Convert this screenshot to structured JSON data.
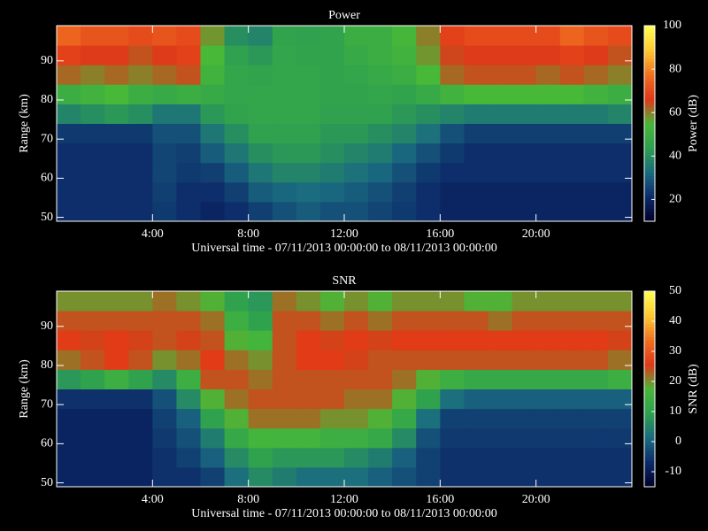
{
  "chart_data": [
    {
      "type": "heatmap",
      "title": "Power",
      "xlabel": "Universal time - 07/11/2013 00:00:00 to 08/11/2013 00:00:00",
      "ylabel": "Range (km)",
      "colorbar_label": "Power (dB)",
      "x": [
        0.5,
        1.5,
        2.5,
        3.5,
        4.5,
        5.5,
        6.5,
        7.5,
        8.5,
        9.5,
        10.5,
        11.5,
        12.5,
        13.5,
        14.5,
        15.5,
        16.5,
        17.5,
        18.5,
        19.5,
        20.5,
        21.5,
        22.5,
        23.5
      ],
      "y": [
        51.5,
        56.5,
        61.5,
        66.5,
        71.5,
        76.5,
        81.5,
        86.5,
        91.5,
        96.5
      ],
      "z": [
        [
          22,
          22,
          22,
          22,
          24,
          22,
          20,
          22,
          25,
          28,
          30,
          28,
          28,
          26,
          24,
          22,
          20,
          20,
          20,
          20,
          20,
          20,
          20,
          20
        ],
        [
          22,
          22,
          22,
          22,
          25,
          22,
          22,
          25,
          30,
          32,
          33,
          32,
          30,
          28,
          25,
          22,
          20,
          20,
          20,
          20,
          20,
          20,
          20,
          20
        ],
        [
          22,
          22,
          22,
          22,
          26,
          24,
          25,
          30,
          35,
          38,
          38,
          36,
          34,
          32,
          28,
          24,
          22,
          22,
          22,
          22,
          22,
          22,
          22,
          22
        ],
        [
          22,
          22,
          22,
          22,
          26,
          25,
          30,
          35,
          40,
          42,
          42,
          40,
          38,
          36,
          32,
          28,
          24,
          22,
          22,
          22,
          22,
          22,
          22,
          22
        ],
        [
          24,
          24,
          24,
          24,
          28,
          28,
          35,
          40,
          44,
          44,
          44,
          42,
          42,
          40,
          38,
          34,
          28,
          25,
          25,
          25,
          25,
          25,
          25,
          25
        ],
        [
          38,
          40,
          42,
          40,
          35,
          35,
          42,
          45,
          46,
          46,
          46,
          44,
          44,
          44,
          42,
          40,
          38,
          36,
          36,
          36,
          36,
          36,
          36,
          38
        ],
        [
          50,
          52,
          55,
          50,
          48,
          50,
          48,
          46,
          46,
          46,
          46,
          45,
          45,
          46,
          45,
          48,
          52,
          55,
          55,
          55,
          55,
          55,
          52,
          50
        ],
        [
          62,
          60,
          62,
          60,
          62,
          64,
          52,
          46,
          45,
          46,
          46,
          45,
          46,
          48,
          50,
          55,
          62,
          64,
          64,
          64,
          62,
          64,
          62,
          60
        ],
        [
          68,
          66,
          66,
          64,
          66,
          68,
          55,
          44,
          42,
          46,
          45,
          45,
          48,
          50,
          52,
          58,
          65,
          66,
          66,
          66,
          66,
          68,
          66,
          64
        ],
        [
          75,
          72,
          72,
          70,
          72,
          70,
          58,
          40,
          38,
          45,
          44,
          45,
          50,
          50,
          54,
          60,
          68,
          70,
          70,
          70,
          70,
          75,
          72,
          70
        ]
      ],
      "xlim": [
        0,
        24
      ],
      "ylim": [
        49,
        99
      ],
      "xticks": [
        {
          "value": 4,
          "label": "4:00"
        },
        {
          "value": 8,
          "label": "8:00"
        },
        {
          "value": 12,
          "label": "12:00"
        },
        {
          "value": 16,
          "label": "16:00"
        },
        {
          "value": 20,
          "label": "20:00"
        }
      ],
      "yticks": [
        50,
        60,
        70,
        80,
        90
      ],
      "clim": [
        10,
        100
      ],
      "cticks": [
        20,
        40,
        60,
        80,
        100
      ],
      "colormap": [
        "#000028",
        "#0c2a6a",
        "#1a6a80",
        "#2ea050",
        "#48b838",
        "#e03818",
        "#f07020",
        "#ffc830",
        "#ffff50"
      ]
    },
    {
      "type": "heatmap",
      "title": "SNR",
      "xlabel": "Universal time - 07/11/2013 00:00:00 to 08/11/2013 00:00:00",
      "ylabel": "Range (km)",
      "colorbar_label": "SNR (dB)",
      "x": [
        0.5,
        1.5,
        2.5,
        3.5,
        4.5,
        5.5,
        6.5,
        7.5,
        8.5,
        9.5,
        10.5,
        11.5,
        12.5,
        13.5,
        14.5,
        15.5,
        16.5,
        17.5,
        18.5,
        19.5,
        20.5,
        21.5,
        22.5,
        23.5
      ],
      "y": [
        51.5,
        56.5,
        61.5,
        66.5,
        71.5,
        76.5,
        81.5,
        86.5,
        91.5,
        96.5
      ],
      "z": [
        [
          -8,
          -8,
          -8,
          -8,
          -6,
          -6,
          -4,
          2,
          6,
          4,
          2,
          2,
          2,
          0,
          -2,
          -4,
          -6,
          -6,
          -6,
          -6,
          -6,
          -6,
          -6,
          -6
        ],
        [
          -8,
          -8,
          -8,
          -8,
          -6,
          -4,
          0,
          6,
          10,
          8,
          8,
          8,
          6,
          4,
          0,
          -4,
          -6,
          -6,
          -6,
          -6,
          -6,
          -6,
          -6,
          -6
        ],
        [
          -8,
          -8,
          -8,
          -8,
          -5,
          -2,
          4,
          12,
          16,
          16,
          16,
          14,
          14,
          12,
          6,
          -2,
          -5,
          -5,
          -5,
          -5,
          -5,
          -5,
          -5,
          -5
        ],
        [
          -8,
          -8,
          -8,
          -8,
          -4,
          0,
          10,
          18,
          22,
          22,
          22,
          20,
          20,
          18,
          12,
          2,
          -4,
          -4,
          -4,
          -4,
          -4,
          -4,
          -4,
          -4
        ],
        [
          -6,
          -6,
          -6,
          -6,
          -2,
          6,
          18,
          22,
          24,
          24,
          24,
          24,
          22,
          22,
          18,
          10,
          2,
          0,
          0,
          0,
          0,
          0,
          0,
          0
        ],
        [
          8,
          10,
          14,
          10,
          6,
          14,
          24,
          24,
          22,
          24,
          24,
          24,
          24,
          24,
          22,
          18,
          14,
          12,
          12,
          12,
          12,
          12,
          12,
          14
        ],
        [
          22,
          24,
          26,
          24,
          20,
          22,
          26,
          22,
          20,
          24,
          26,
          26,
          25,
          24,
          24,
          24,
          24,
          24,
          24,
          24,
          24,
          24,
          24,
          22
        ],
        [
          26,
          25,
          26,
          25,
          24,
          25,
          24,
          18,
          16,
          24,
          26,
          25,
          26,
          25,
          26,
          26,
          26,
          26,
          26,
          26,
          26,
          26,
          26,
          25
        ],
        [
          24,
          24,
          24,
          24,
          24,
          24,
          22,
          14,
          10,
          24,
          24,
          22,
          24,
          22,
          24,
          24,
          24,
          24,
          22,
          24,
          24,
          24,
          24,
          24
        ],
        [
          20,
          20,
          20,
          20,
          22,
          20,
          18,
          10,
          8,
          22,
          20,
          18,
          20,
          18,
          20,
          20,
          20,
          18,
          18,
          20,
          20,
          20,
          20,
          20
        ]
      ],
      "xlim": [
        0,
        24
      ],
      "ylim": [
        49,
        99
      ],
      "xticks": [
        {
          "value": 4,
          "label": "4:00"
        },
        {
          "value": 8,
          "label": "8:00"
        },
        {
          "value": 12,
          "label": "12:00"
        },
        {
          "value": 16,
          "label": "16:00"
        },
        {
          "value": 20,
          "label": "20:00"
        }
      ],
      "yticks": [
        50,
        60,
        70,
        80,
        90
      ],
      "clim": [
        -15,
        50
      ],
      "cticks": [
        -10,
        0,
        10,
        20,
        30,
        40,
        50
      ],
      "colormap": [
        "#000028",
        "#0c2a6a",
        "#1a6a80",
        "#2ea050",
        "#48b838",
        "#e03818",
        "#f07020",
        "#ffc830",
        "#ffff50"
      ]
    }
  ]
}
